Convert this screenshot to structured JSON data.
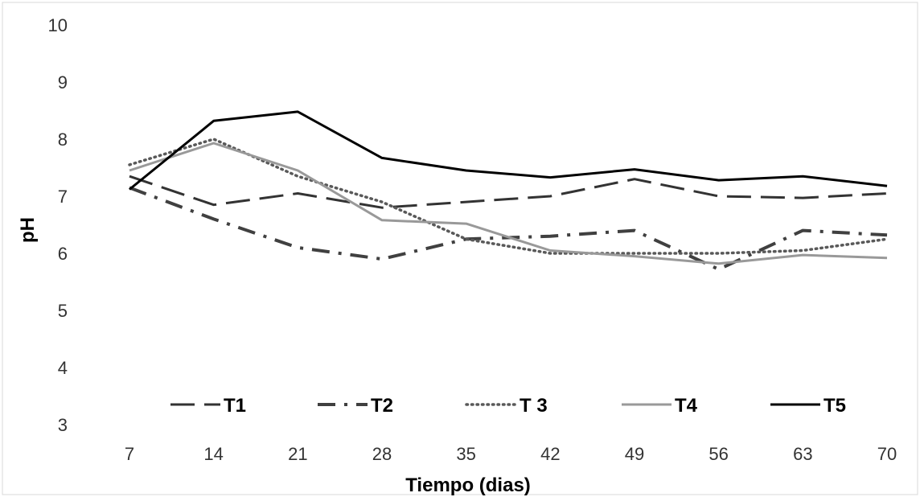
{
  "chart_data": {
    "type": "line",
    "title": "",
    "xlabel": "Tiempo (dias)",
    "ylabel": "pH",
    "categories": [
      "7",
      "14",
      "21",
      "28",
      "35",
      "42",
      "49",
      "56",
      "63",
      "70"
    ],
    "yticks": [
      "3",
      "4",
      "5",
      "6",
      "7",
      "8",
      "9",
      "10"
    ],
    "ylim": [
      3,
      10
    ],
    "grid": false,
    "legend_position": "bottom-inside",
    "series": [
      {
        "name": "T1",
        "style": "long-dash",
        "color": "#333333",
        "values": [
          7.35,
          6.85,
          7.05,
          6.8,
          6.9,
          7.0,
          7.3,
          7.0,
          6.97,
          7.05
        ]
      },
      {
        "name": "T2",
        "style": "dash-dot",
        "color": "#404040",
        "values": [
          7.15,
          6.6,
          6.1,
          5.9,
          6.25,
          6.3,
          6.4,
          5.72,
          6.4,
          6.32
        ]
      },
      {
        "name": "T 3",
        "style": "dotted",
        "color": "#595959",
        "values": [
          7.55,
          8.0,
          7.35,
          6.9,
          6.25,
          6.0,
          6.0,
          6.0,
          6.05,
          6.25
        ]
      },
      {
        "name": "T4",
        "style": "solid",
        "color": "#999999",
        "values": [
          7.45,
          7.93,
          7.45,
          6.58,
          6.52,
          6.05,
          5.95,
          5.82,
          5.97,
          5.92
        ]
      },
      {
        "name": "T5",
        "style": "solid",
        "color": "#000000",
        "values": [
          7.12,
          8.32,
          8.48,
          7.67,
          7.45,
          7.33,
          7.47,
          7.28,
          7.35,
          7.18
        ]
      }
    ]
  }
}
